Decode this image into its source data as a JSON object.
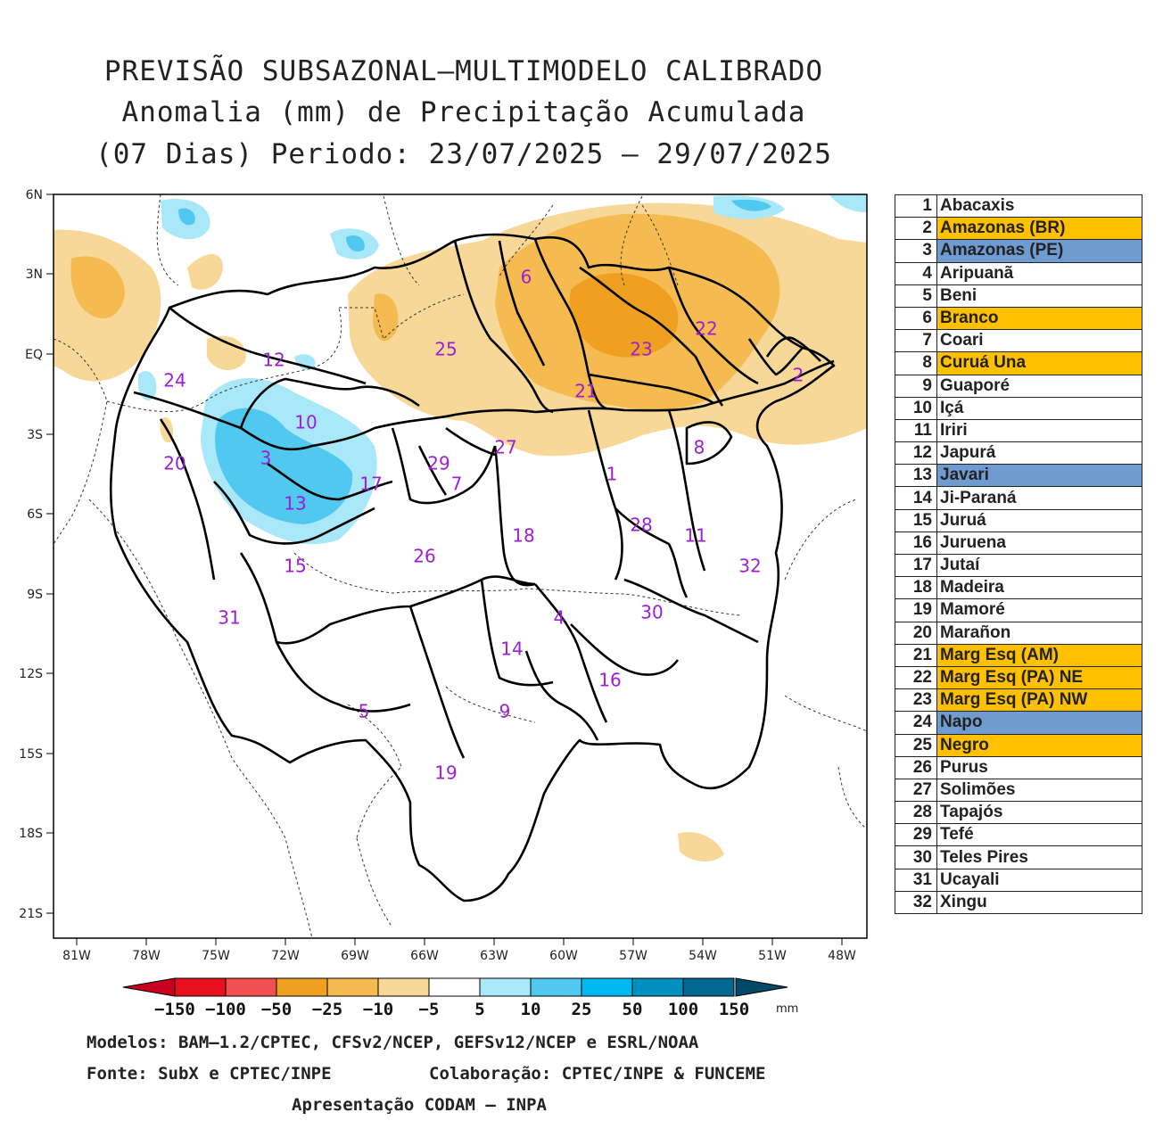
{
  "title": {
    "line1": "PREVISÃO SUBSAZONAL–MULTIMODELO CALIBRADO",
    "line2": "Anomalia (mm) de Precipitação Acumulada",
    "line3": "(07 Dias) Periodo: 23/07/2025 – 29/07/2025"
  },
  "axes": {
    "lat_labels": [
      "6N",
      "3N",
      "EQ",
      "3S",
      "6S",
      "9S",
      "12S",
      "15S",
      "18S",
      "21S"
    ],
    "lon_labels": [
      "81W",
      "78W",
      "75W",
      "72W",
      "69W",
      "66W",
      "63W",
      "60W",
      "57W",
      "54W",
      "51W",
      "48W"
    ]
  },
  "basin_labels": [
    "1",
    "2",
    "3",
    "4",
    "5",
    "6",
    "7",
    "8",
    "9",
    "10",
    "11",
    "12",
    "13",
    "14",
    "15",
    "16",
    "17",
    "18",
    "19",
    "20",
    "21",
    "22",
    "23",
    "24",
    "25",
    "26",
    "27",
    "28",
    "29",
    "30",
    "31",
    "32"
  ],
  "colorbar": {
    "labels": [
      "−150",
      "−100",
      "−50",
      "−25",
      "−10",
      "−5",
      "5",
      "10",
      "25",
      "50",
      "100",
      "150"
    ],
    "unit": "mm",
    "colors": [
      "#c8001e",
      "#e8101e",
      "#f25050",
      "#f0a020",
      "#f5bb50",
      "#f8d898",
      "#ffffff",
      "#a8e8f8",
      "#50c8f0",
      "#00b8f0",
      "#0090c0",
      "#006890",
      "#004a68"
    ]
  },
  "legend": [
    {
      "num": "1",
      "name": "Abacaxis",
      "color": "#ffffff"
    },
    {
      "num": "2",
      "name": "Amazonas (BR)",
      "color": "#ffc000"
    },
    {
      "num": "3",
      "name": "Amazonas (PE)",
      "color": "#6f9bd1"
    },
    {
      "num": "4",
      "name": "Aripuanã",
      "color": "#ffffff"
    },
    {
      "num": "5",
      "name": "Beni",
      "color": "#ffffff"
    },
    {
      "num": "6",
      "name": "Branco",
      "color": "#ffc000"
    },
    {
      "num": "7",
      "name": "Coari",
      "color": "#ffffff"
    },
    {
      "num": "8",
      "name": "Curuá Una",
      "color": "#ffc000"
    },
    {
      "num": "9",
      "name": "Guaporé",
      "color": "#ffffff"
    },
    {
      "num": "10",
      "name": "Içá",
      "color": "#ffffff"
    },
    {
      "num": "11",
      "name": "Iriri",
      "color": "#ffffff"
    },
    {
      "num": "12",
      "name": "Japurá",
      "color": "#ffffff"
    },
    {
      "num": "13",
      "name": "Javari",
      "color": "#6f9bd1"
    },
    {
      "num": "14",
      "name": "Ji-Paraná",
      "color": "#ffffff"
    },
    {
      "num": "15",
      "name": "Juruá",
      "color": "#ffffff"
    },
    {
      "num": "16",
      "name": "Juruena",
      "color": "#ffffff"
    },
    {
      "num": "17",
      "name": "Jutaí",
      "color": "#ffffff"
    },
    {
      "num": "18",
      "name": "Madeira",
      "color": "#ffffff"
    },
    {
      "num": "19",
      "name": "Mamoré",
      "color": "#ffffff"
    },
    {
      "num": "20",
      "name": "Marañon",
      "color": "#ffffff"
    },
    {
      "num": "21",
      "name": "Marg Esq (AM)",
      "color": "#ffc000"
    },
    {
      "num": "22",
      "name": "Marg Esq (PA) NE",
      "color": "#ffc000"
    },
    {
      "num": "23",
      "name": "Marg Esq (PA) NW",
      "color": "#ffc000"
    },
    {
      "num": "24",
      "name": "Napo",
      "color": "#6f9bd1"
    },
    {
      "num": "25",
      "name": "Negro",
      "color": "#ffc000"
    },
    {
      "num": "26",
      "name": "Purus",
      "color": "#ffffff"
    },
    {
      "num": "27",
      "name": "Solimões",
      "color": "#ffffff"
    },
    {
      "num": "28",
      "name": "Tapajós",
      "color": "#ffffff"
    },
    {
      "num": "29",
      "name": "Tefé",
      "color": "#ffffff"
    },
    {
      "num": "30",
      "name": "Teles Pires",
      "color": "#ffffff"
    },
    {
      "num": "31",
      "name": "Ucayali",
      "color": "#ffffff"
    },
    {
      "num": "32",
      "name": "Xingu",
      "color": "#ffffff"
    }
  ],
  "footer": {
    "models": "Modelos: BAM–1.2/CPTEC, CFSv2/NCEP, GEFSv12/NCEP e ESRL/NOAA",
    "source": "Fonte: SubX e CPTEC/INPE",
    "collab": "Colaboração: CPTEC/INPE & FUNCEME",
    "presentation": "Apresentação CODAM – INPA"
  }
}
